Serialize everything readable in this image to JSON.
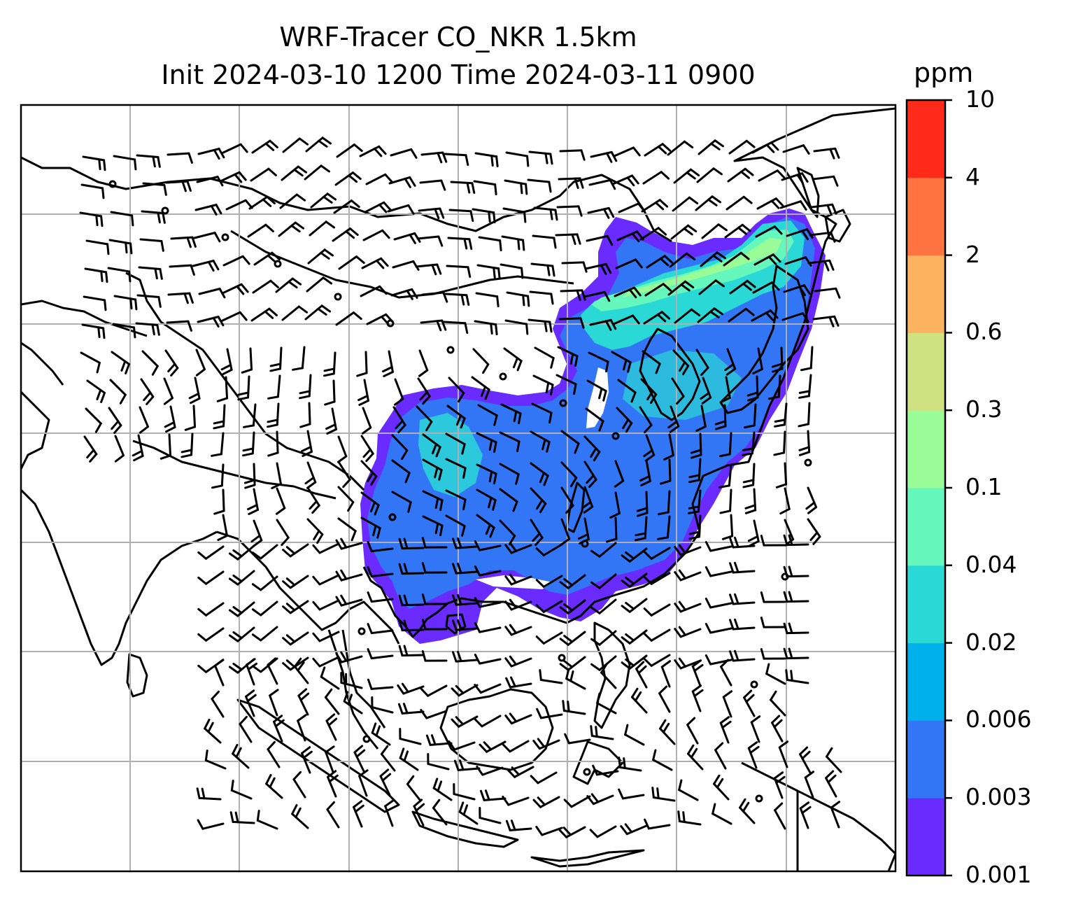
{
  "title": {
    "line1": "WRF-Tracer CO_NKR 1.5km",
    "line2": "Init 2024-03-10 1200 Time 2024-03-11 0900"
  },
  "colorbar": {
    "unit": "ppm",
    "levels": [
      "0.001",
      "0.003",
      "0.006",
      "0.02",
      "0.04",
      "0.1",
      "0.3",
      "0.6",
      "2",
      "4",
      "10"
    ],
    "colors": [
      "#6a2bff",
      "#3276f5",
      "#00b0ed",
      "#2ad8d6",
      "#66f7bd",
      "#9afc97",
      "#cfe180",
      "#fbb35f",
      "#ff7340",
      "#ff2a19"
    ]
  },
  "map": {
    "gridlines": true,
    "plume_colors": {
      "outer": "#6a2bff",
      "main": "#3276f5",
      "mid": "#2ad8d6",
      "high": "#66f7bd",
      "peak": "#9afc97"
    }
  }
}
